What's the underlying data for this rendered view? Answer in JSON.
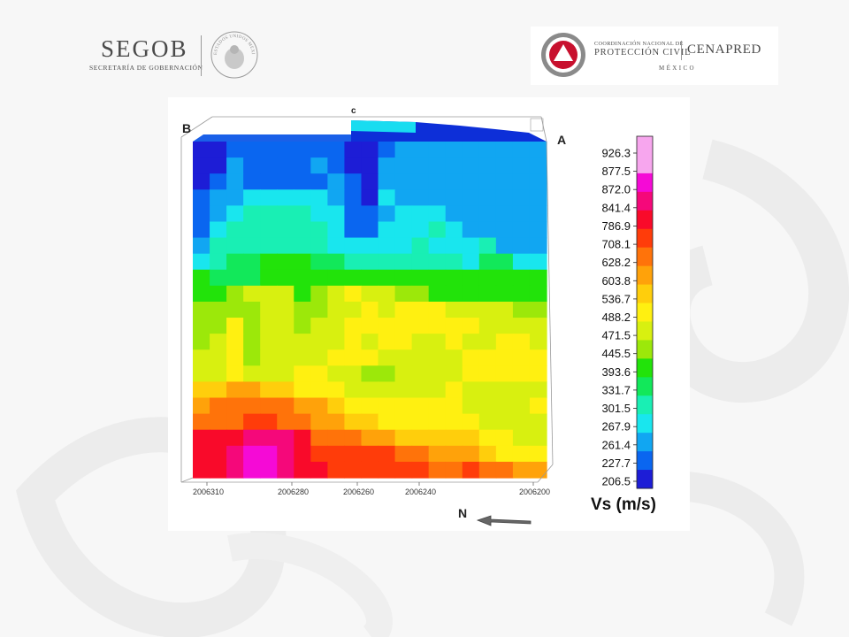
{
  "header": {
    "segob": {
      "wordmark": "SEGOB",
      "subtitle": "SECRETARÍA DE GOBERNACIÓN",
      "seal_text": "ESTADOS UNIDOS MEXICANOS"
    },
    "cenapred": {
      "line1": "COORDINACIÓN NACIONAL DE",
      "line2": "PROTECCIÓN CIVIL",
      "name": "CENAPRED",
      "country": "MÉXICO"
    }
  },
  "colors": {
    "background": "#f7f7f7",
    "panel": "#ffffff",
    "logo_gray": "#4a4a4a",
    "emblem_red": "#c8102e",
    "colormap": [
      "#1d1dd6",
      "#0a66f0",
      "#11a6f2",
      "#19e6ee",
      "#19efb4",
      "#12e85a",
      "#22e30a",
      "#9ce80a",
      "#d8f010",
      "#fff011",
      "#ffce0c",
      "#ffa20a",
      "#ff730a",
      "#ff3c0a",
      "#f90a2a",
      "#f5087a",
      "#f50ad6",
      "#f7a6ee"
    ]
  },
  "chart_data": {
    "type": "heatmap",
    "title": "",
    "corner_labels": {
      "B": "B",
      "A": "A",
      "C": "c"
    },
    "north_label": "N",
    "x_ticks": [
      "2006310",
      "2006280",
      "2006260",
      "2006240",
      "2006200"
    ],
    "colorbar": {
      "title": "Vs (m/s)",
      "ticks": [
        "926.3",
        "877.5",
        "872.0",
        "841.4",
        "786.9",
        "708.1",
        "628.2",
        "603.8",
        "536.7",
        "488.2",
        "471.5",
        "445.5",
        "393.6",
        "331.7",
        "301.5",
        "267.9",
        "261.4",
        "227.7",
        "206.5"
      ]
    },
    "grid": {
      "rows": 21,
      "cols": 21,
      "values": [
        "001111111001222222222",
        "002111121002222222222",
        "012111112102222222222",
        "122333332103222222222",
        "123444433112333222222",
        "134444443113334322222",
        "244444443333343334222",
        "345566655444444435533",
        "655566666666666666666",
        "667888678988776666666",
        "777788778898999888877",
        "779788788999999998888",
        "789788888989988988998",
        "889788889998888899999",
        "889888998877888899999",
        "AABBAA99988888898888",
        "BCCCCCBBA999999988889",
        "CCCDDCCBBAA9999998888",
        "EEEFFFECCCBBAAAAA9988",
        "EEFGGFEDDDDDCCBBBA999",
        "EEFGGFEEDDDDDDCCDCCBB"
      ]
    }
  }
}
